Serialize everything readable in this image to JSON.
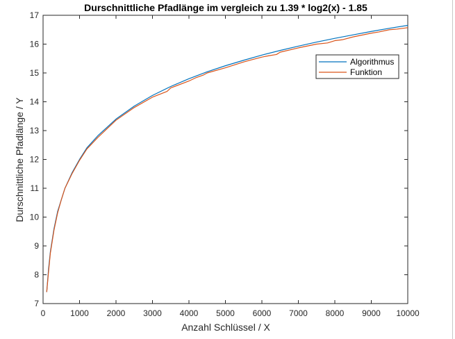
{
  "chart_data": {
    "type": "line",
    "title": "Durschnittliche Pfadlänge im vergleich zu 1.39 * log2(x) - 1.85",
    "xlabel": "Anzahl Schlüssel / X",
    "ylabel": "Durschnittliche Pfadlänge / Y",
    "xlim": [
      0,
      10000
    ],
    "ylim": [
      7,
      17
    ],
    "xticks": [
      "0",
      "1000",
      "2000",
      "3000",
      "4000",
      "5000",
      "6000",
      "7000",
      "8000",
      "9000",
      "10000"
    ],
    "yticks": [
      "7",
      "8",
      "9",
      "10",
      "11",
      "12",
      "13",
      "14",
      "15",
      "16",
      "17"
    ],
    "grid": false,
    "legend_position": "top-right",
    "series": [
      {
        "name": "Algorithmus",
        "color": "#0072BD",
        "x": [
          100,
          150,
          200,
          300,
          400,
          500,
          600,
          800,
          1000,
          1200,
          1500,
          2000,
          2500,
          3000,
          3500,
          4000,
          4500,
          5000,
          5500,
          6000,
          6500,
          7000,
          7500,
          8000,
          8500,
          9000,
          9500,
          10000
        ],
        "y": [
          7.4,
          8.2,
          8.8,
          9.6,
          10.2,
          10.6,
          11.0,
          11.55,
          12.0,
          12.4,
          12.82,
          13.4,
          13.85,
          14.22,
          14.53,
          14.8,
          15.04,
          15.25,
          15.44,
          15.62,
          15.78,
          15.93,
          16.07,
          16.2,
          16.32,
          16.44,
          16.55,
          16.65
        ]
      },
      {
        "name": "Funktion",
        "color": "#D95319",
        "x": [
          100,
          150,
          200,
          300,
          400,
          500,
          600,
          800,
          1000,
          1200,
          1500,
          2000,
          2500,
          3000,
          3200,
          3400,
          3500,
          4000,
          4200,
          4400,
          4500,
          5000,
          5500,
          5700,
          6000,
          6200,
          6400,
          6500,
          7000,
          7500,
          7800,
          8000,
          8200,
          8500,
          9000,
          9200,
          9500,
          9700,
          10000
        ],
        "y": [
          7.4,
          8.1,
          8.75,
          9.55,
          10.15,
          10.6,
          11.0,
          11.52,
          11.97,
          12.36,
          12.76,
          13.36,
          13.8,
          14.16,
          14.26,
          14.36,
          14.48,
          14.72,
          14.84,
          14.93,
          15.0,
          15.18,
          15.38,
          15.45,
          15.55,
          15.6,
          15.64,
          15.72,
          15.87,
          16.0,
          16.04,
          16.12,
          16.15,
          16.25,
          16.38,
          16.42,
          16.5,
          16.52,
          16.57
        ]
      }
    ]
  }
}
